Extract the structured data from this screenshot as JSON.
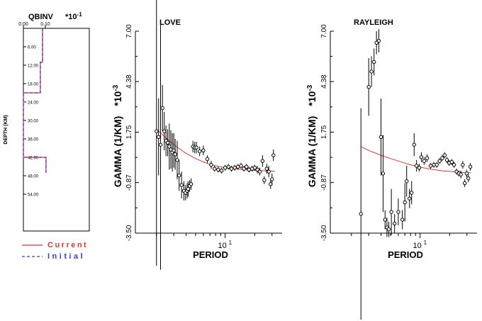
{
  "legend": {
    "current_label": "Current",
    "initial_label": "Initial",
    "current_color": "#e8352b",
    "initial_color": "#3a3ad8"
  },
  "chart_data": [
    {
      "id": "qbinv",
      "type": "line",
      "title": "QBINV",
      "scale_label": "*10",
      "scale_exp": "-1",
      "xlabel": "",
      "ylabel": "DEPTH (KM)",
      "x_ticks": [
        "0.00",
        "0.10"
      ],
      "x_tick_values": [
        0.0,
        0.1
      ],
      "y_ticks": [
        "6.00",
        "12.00",
        "18.00",
        "24.00",
        "30.00",
        "36.00",
        "42.00",
        "48.00",
        "54.00"
      ],
      "y_tick_values": [
        6,
        12,
        18,
        24,
        30,
        36,
        42,
        48,
        54
      ],
      "xlim": [
        0.0,
        0.3
      ],
      "ylim": [
        0,
        66
      ],
      "series": [
        {
          "name": "Current",
          "color": "#e8352b",
          "points": [
            [
              0.087,
              0
            ],
            [
              0.087,
              11
            ],
            [
              0.077,
              11
            ],
            [
              0.077,
              21
            ],
            [
              0.0,
              21
            ],
            [
              0.0,
              42
            ],
            [
              0.103,
              42
            ],
            [
              0.103,
              47
            ]
          ]
        },
        {
          "name": "Initial",
          "color": "#3a3ad8",
          "dashed": true,
          "points": [
            [
              0.087,
              0
            ],
            [
              0.087,
              11
            ],
            [
              0.077,
              11
            ],
            [
              0.077,
              21
            ],
            [
              0.0,
              21
            ],
            [
              0.0,
              42
            ],
            [
              0.103,
              42
            ],
            [
              0.103,
              47
            ]
          ]
        }
      ]
    },
    {
      "id": "love",
      "type": "scatter",
      "title": "LOVE",
      "xlabel": "PERIOD",
      "ylabel": "GAMMA (1/KM)",
      "ylabel_scale": "*10",
      "ylabel_exp": "-3",
      "y_ticks": [
        "7.00",
        "4.38",
        "1.75",
        "-0.87",
        "-3.50"
      ],
      "y_tick_values": [
        7.0,
        4.38,
        1.75,
        -0.87,
        -3.5
      ],
      "x_tick_label_base": "10",
      "x_tick_label_exp": "1",
      "x_scale": "log",
      "xlim": [
        1.05,
        38
      ],
      "ylim": [
        -3.5,
        7.0
      ],
      "observed": [
        {
          "x": 2.0,
          "y": 1.8,
          "err": 7.0
        },
        {
          "x": 2.1,
          "y": 1.5,
          "err": 2.0
        },
        {
          "x": 2.2,
          "y": 1.1,
          "err": 6.5
        },
        {
          "x": 2.3,
          "y": 3.0,
          "err": 1.2
        },
        {
          "x": 2.4,
          "y": 1.8,
          "err": 1.0
        },
        {
          "x": 2.5,
          "y": 1.3,
          "err": 0.8
        },
        {
          "x": 2.6,
          "y": 1.2,
          "err": 0.7
        },
        {
          "x": 2.7,
          "y": 1.0,
          "err": 1.2
        },
        {
          "x": 2.8,
          "y": 0.85,
          "err": 1.0
        },
        {
          "x": 2.9,
          "y": 0.7,
          "err": 1.0
        },
        {
          "x": 3.0,
          "y": 0.8,
          "err": 0.9
        },
        {
          "x": 3.1,
          "y": 0.6,
          "err": 0.8
        },
        {
          "x": 3.25,
          "y": 0.3,
          "err": 1.0
        },
        {
          "x": 3.4,
          "y": -0.5,
          "err": 0.8
        },
        {
          "x": 3.6,
          "y": -1.0,
          "err": 0.7
        },
        {
          "x": 3.8,
          "y": -1.3,
          "err": 0.5
        },
        {
          "x": 3.95,
          "y": -1.4,
          "err": 0.4
        },
        {
          "x": 4.1,
          "y": -1.3,
          "err": 0.4
        },
        {
          "x": 4.2,
          "y": -1.2,
          "err": 0.4
        },
        {
          "x": 4.35,
          "y": -1.05,
          "err": 0.3
        },
        {
          "x": 4.5,
          "y": -0.95,
          "err": 0.3
        },
        {
          "x": 4.7,
          "y": 1.0,
          "err": 0.3
        },
        {
          "x": 4.9,
          "y": 0.95,
          "err": 0.3
        },
        {
          "x": 5.1,
          "y": 0.95,
          "err": 0.3
        },
        {
          "x": 5.5,
          "y": 0.75,
          "err": 0.25
        },
        {
          "x": 6.0,
          "y": 0.8,
          "err": 0.25
        },
        {
          "x": 6.6,
          "y": 0.35,
          "err": 0.2
        },
        {
          "x": 7.2,
          "y": 0.05,
          "err": 0.2
        },
        {
          "x": 7.8,
          "y": -0.15,
          "err": 0.15
        },
        {
          "x": 8.5,
          "y": -0.2,
          "err": 0.15
        },
        {
          "x": 9.2,
          "y": -0.25,
          "err": 0.15
        },
        {
          "x": 10.0,
          "y": -0.1,
          "err": 0.15
        },
        {
          "x": 10.8,
          "y": -0.05,
          "err": 0.15
        },
        {
          "x": 11.6,
          "y": -0.15,
          "err": 0.15
        },
        {
          "x": 12.5,
          "y": -0.1,
          "err": 0.15
        },
        {
          "x": 13.5,
          "y": -0.05,
          "err": 0.15
        },
        {
          "x": 14.5,
          "y": 0.0,
          "err": 0.15
        },
        {
          "x": 15.5,
          "y": -0.15,
          "err": 0.15
        },
        {
          "x": 16.5,
          "y": -0.05,
          "err": 0.15
        },
        {
          "x": 17.5,
          "y": -0.2,
          "err": 0.15
        },
        {
          "x": 18.8,
          "y": -0.15,
          "err": 0.15
        },
        {
          "x": 20.0,
          "y": -0.1,
          "err": 0.15
        },
        {
          "x": 21.3,
          "y": -0.2,
          "err": 0.2
        },
        {
          "x": 22.5,
          "y": -0.3,
          "err": 0.2
        },
        {
          "x": 24.0,
          "y": 0.25,
          "err": 0.3
        },
        {
          "x": 25.0,
          "y": -0.75,
          "err": 0.2
        },
        {
          "x": 26.5,
          "y": -0.15,
          "err": 0.25
        },
        {
          "x": 27.8,
          "y": -0.3,
          "err": 0.3
        },
        {
          "x": 29.0,
          "y": -0.95,
          "err": 0.25
        },
        {
          "x": 30.0,
          "y": -0.7,
          "err": 0.3
        },
        {
          "x": 31.0,
          "y": 0.55,
          "err": 0.3
        }
      ],
      "predicted": [
        {
          "x": 2.0,
          "y": 1.9
        },
        {
          "x": 2.5,
          "y": 1.45
        },
        {
          "x": 3.0,
          "y": 1.1
        },
        {
          "x": 3.5,
          "y": 0.85
        },
        {
          "x": 4.0,
          "y": 0.65
        },
        {
          "x": 5.0,
          "y": 0.38
        },
        {
          "x": 6.0,
          "y": 0.2
        },
        {
          "x": 7.0,
          "y": 0.08
        },
        {
          "x": 8.0,
          "y": 0.0
        },
        {
          "x": 10.0,
          "y": -0.1
        },
        {
          "x": 13.0,
          "y": -0.17
        },
        {
          "x": 17.0,
          "y": -0.22
        },
        {
          "x": 22.0,
          "y": -0.25
        },
        {
          "x": 28.0,
          "y": -0.27
        },
        {
          "x": 32.0,
          "y": -0.28
        }
      ]
    },
    {
      "id": "rayleigh",
      "type": "scatter",
      "title": "RAYLEIGH",
      "xlabel": "PERIOD",
      "ylabel": "GAMMA (1/KM)",
      "ylabel_scale": "*10",
      "ylabel_exp": "-3",
      "y_ticks": [
        "7.00",
        "4.38",
        "1.75",
        "-0.87",
        "-3.50"
      ],
      "y_tick_values": [
        7.0,
        4.38,
        1.75,
        -0.87,
        -3.5
      ],
      "x_tick_label_base": "10",
      "x_tick_label_exp": "1",
      "x_scale": "log",
      "xlim": [
        1.05,
        38
      ],
      "ylim": [
        -3.5,
        7.0
      ],
      "observed": [
        {
          "x": 2.5,
          "y": -2.5,
          "err": 5.5
        },
        {
          "x": 3.0,
          "y": 4.1,
          "err": 1.5
        },
        {
          "x": 3.2,
          "y": 4.9,
          "err": 0.8
        },
        {
          "x": 3.4,
          "y": 5.4,
          "err": 0.7
        },
        {
          "x": 3.6,
          "y": 6.4,
          "err": 0.6
        },
        {
          "x": 3.8,
          "y": 6.5,
          "err": 0.6
        },
        {
          "x": 4.0,
          "y": 1.5,
          "err": 2.0
        },
        {
          "x": 4.2,
          "y": -0.4,
          "err": 2.0
        },
        {
          "x": 4.4,
          "y": -2.8,
          "err": 0.5
        },
        {
          "x": 4.6,
          "y": -3.2,
          "err": 0.5
        },
        {
          "x": 4.8,
          "y": -3.3,
          "err": 0.4
        },
        {
          "x": 5.1,
          "y": -2.4,
          "err": 1.2
        },
        {
          "x": 5.5,
          "y": -3.0,
          "err": 0.5
        },
        {
          "x": 6.0,
          "y": -2.4,
          "err": 0.7
        },
        {
          "x": 6.6,
          "y": -2.8,
          "err": 0.5
        },
        {
          "x": 7.0,
          "y": -1.9,
          "err": 1.0
        },
        {
          "x": 7.3,
          "y": -0.8,
          "err": 0.8
        },
        {
          "x": 7.8,
          "y": -1.7,
          "err": 0.5
        },
        {
          "x": 8.2,
          "y": -1.4,
          "err": 0.6
        },
        {
          "x": 8.7,
          "y": 1.1,
          "err": 0.6
        },
        {
          "x": 9.2,
          "y": 0.0,
          "err": 0.3
        },
        {
          "x": 9.8,
          "y": -0.1,
          "err": 0.2
        },
        {
          "x": 10.3,
          "y": 0.45,
          "err": 0.25
        },
        {
          "x": 11.0,
          "y": 0.25,
          "err": 0.2
        },
        {
          "x": 11.8,
          "y": 0.4,
          "err": 0.2
        },
        {
          "x": 12.8,
          "y": 0.0,
          "err": 0.15
        },
        {
          "x": 13.8,
          "y": 0.05,
          "err": 0.15
        },
        {
          "x": 14.8,
          "y": 0.05,
          "err": 0.15
        },
        {
          "x": 15.8,
          "y": 0.25,
          "err": 0.15
        },
        {
          "x": 16.8,
          "y": 0.4,
          "err": 0.15
        },
        {
          "x": 17.8,
          "y": 0.55,
          "err": 0.15
        },
        {
          "x": 18.8,
          "y": 0.3,
          "err": 0.15
        },
        {
          "x": 19.8,
          "y": 0.15,
          "err": 0.15
        },
        {
          "x": 21.0,
          "y": 0.2,
          "err": 0.15
        },
        {
          "x": 22.2,
          "y": 0.05,
          "err": 0.15
        },
        {
          "x": 23.5,
          "y": -0.3,
          "err": 0.15
        },
        {
          "x": 24.8,
          "y": -0.4,
          "err": 0.15
        },
        {
          "x": 26.0,
          "y": -0.45,
          "err": 0.2
        },
        {
          "x": 27.2,
          "y": 0.05,
          "err": 0.2
        },
        {
          "x": 28.5,
          "y": -0.9,
          "err": 0.2
        },
        {
          "x": 29.8,
          "y": -0.4,
          "err": 0.2
        },
        {
          "x": 31.0,
          "y": -0.65,
          "err": 0.2
        },
        {
          "x": 32.5,
          "y": -0.05,
          "err": 0.2
        }
      ],
      "predicted": [
        {
          "x": 2.5,
          "y": 1.0
        },
        {
          "x": 3.0,
          "y": 0.8
        },
        {
          "x": 4.0,
          "y": 0.55
        },
        {
          "x": 5.0,
          "y": 0.38
        },
        {
          "x": 6.0,
          "y": 0.25
        },
        {
          "x": 7.0,
          "y": 0.14
        },
        {
          "x": 8.0,
          "y": 0.05
        },
        {
          "x": 10.0,
          "y": -0.07
        },
        {
          "x": 13.0,
          "y": -0.18
        },
        {
          "x": 17.0,
          "y": -0.26
        },
        {
          "x": 22.0,
          "y": -0.31
        },
        {
          "x": 28.0,
          "y": -0.35
        },
        {
          "x": 33.0,
          "y": -0.36
        }
      ]
    }
  ]
}
